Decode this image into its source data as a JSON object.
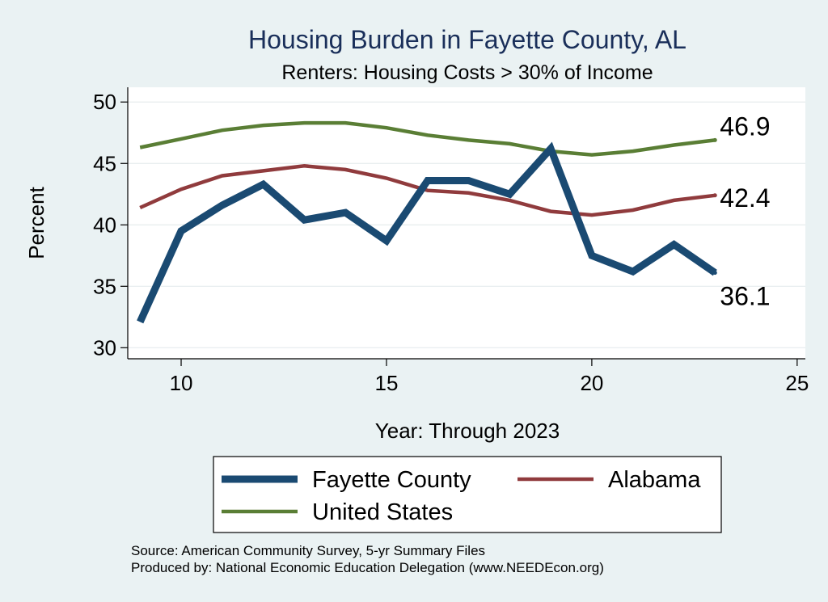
{
  "chart_data": {
    "type": "line",
    "title": "Housing Burden in Fayette County, AL",
    "subtitle": "Renters: Housing Costs > 30% of Income",
    "xlabel": "Year: Through 2023",
    "ylabel": "Percent",
    "xlim": [
      8.7,
      25.2
    ],
    "ylim": [
      29.1,
      51.2
    ],
    "x_ticks": [
      10,
      15,
      20,
      25
    ],
    "y_ticks": [
      30,
      35,
      40,
      45,
      50
    ],
    "grid": true,
    "legend_position": "bottom",
    "x": [
      9,
      10,
      11,
      12,
      13,
      14,
      15,
      16,
      17,
      18,
      19,
      20,
      21,
      22,
      23
    ],
    "series": [
      {
        "name": "Fayette County",
        "color": "#1a4a72",
        "values": [
          32.1,
          39.5,
          41.6,
          43.3,
          40.4,
          41.0,
          38.7,
          43.6,
          43.6,
          42.5,
          46.2,
          37.5,
          36.2,
          38.4,
          36.1
        ],
        "end_label": "36.1"
      },
      {
        "name": "Alabama",
        "color": "#903b3d",
        "values": [
          41.4,
          42.9,
          44.0,
          44.4,
          44.8,
          44.5,
          43.8,
          42.8,
          42.6,
          42.0,
          41.1,
          40.8,
          41.2,
          42.0,
          42.4
        ],
        "end_label": "42.4"
      },
      {
        "name": "United States",
        "color": "#5a7e35",
        "values": [
          46.3,
          47.0,
          47.7,
          48.1,
          48.3,
          48.3,
          47.9,
          47.3,
          46.9,
          46.6,
          46.0,
          45.7,
          46.0,
          46.5,
          46.9
        ],
        "end_label": "46.9"
      }
    ],
    "notes": [
      "Source: American Community Survey, 5-yr Summary Files",
      "Produced by: National Economic Education Delegation (www.NEEDEcon.org)"
    ]
  }
}
